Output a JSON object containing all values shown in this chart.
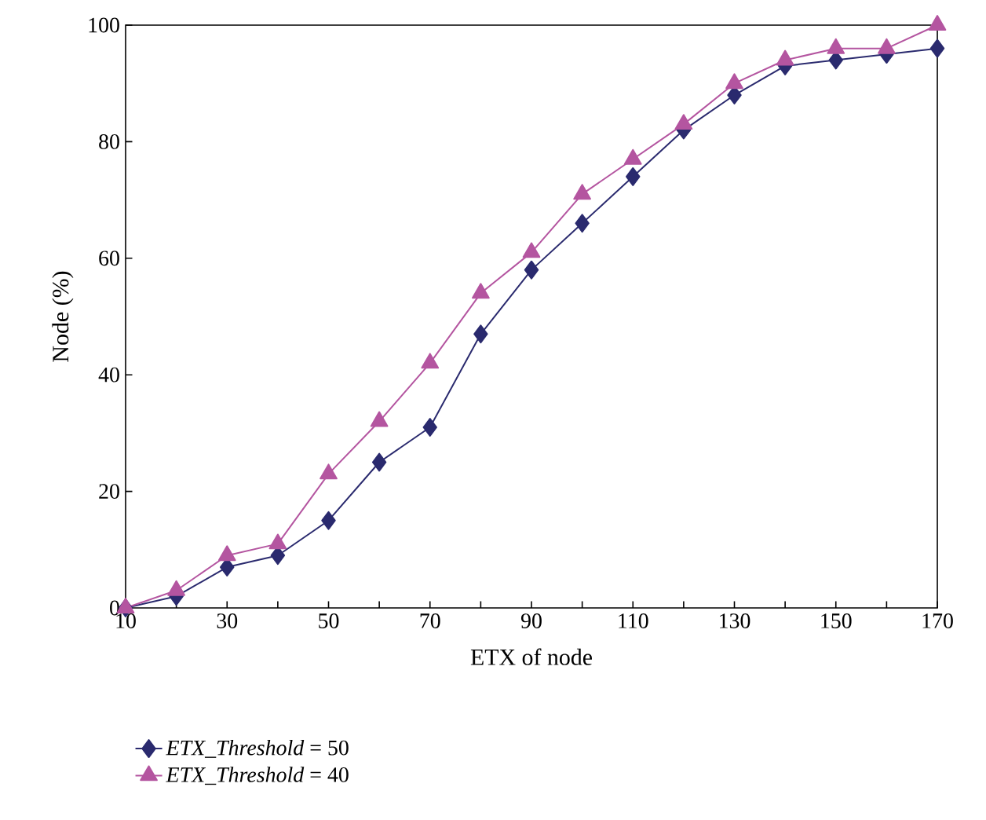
{
  "chart_data": {
    "type": "line",
    "xlabel": "ETX of node",
    "ylabel": "Node (%)",
    "x": [
      10,
      20,
      30,
      40,
      50,
      60,
      70,
      80,
      90,
      100,
      110,
      120,
      130,
      140,
      150,
      160,
      170
    ],
    "xlim": [
      10,
      170
    ],
    "ylim": [
      0,
      100
    ],
    "xticks": [
      10,
      {
        "value": 20,
        "label": null
      },
      30,
      {
        "value": 40,
        "label": null
      },
      50,
      {
        "value": 60,
        "label": null
      },
      70,
      {
        "value": 80,
        "label": null
      },
      90,
      {
        "value": 100,
        "label": null
      },
      110,
      {
        "value": 120,
        "label": null
      },
      130,
      {
        "value": 140,
        "label": null
      },
      150,
      {
        "value": 160,
        "label": null
      },
      170
    ],
    "yticks": [
      0,
      20,
      40,
      60,
      80,
      100
    ],
    "legend": "bottom",
    "line_style": "solid",
    "series": [
      {
        "name": "*ETX_Threshold* = 50",
        "color": "#2a2a6e",
        "marker": "diamond",
        "values": [
          0,
          2,
          7,
          9,
          15,
          25,
          31,
          47,
          58,
          66,
          74,
          82,
          88,
          93,
          94,
          95,
          96
        ]
      },
      {
        "name": "*ETX_Threshold* = 40",
        "color": "#b455a0",
        "marker": "triangle",
        "values": [
          0,
          3,
          9,
          11,
          23,
          32,
          42,
          54,
          61,
          71,
          77,
          83,
          90,
          94,
          96,
          96,
          100
        ]
      }
    ]
  }
}
